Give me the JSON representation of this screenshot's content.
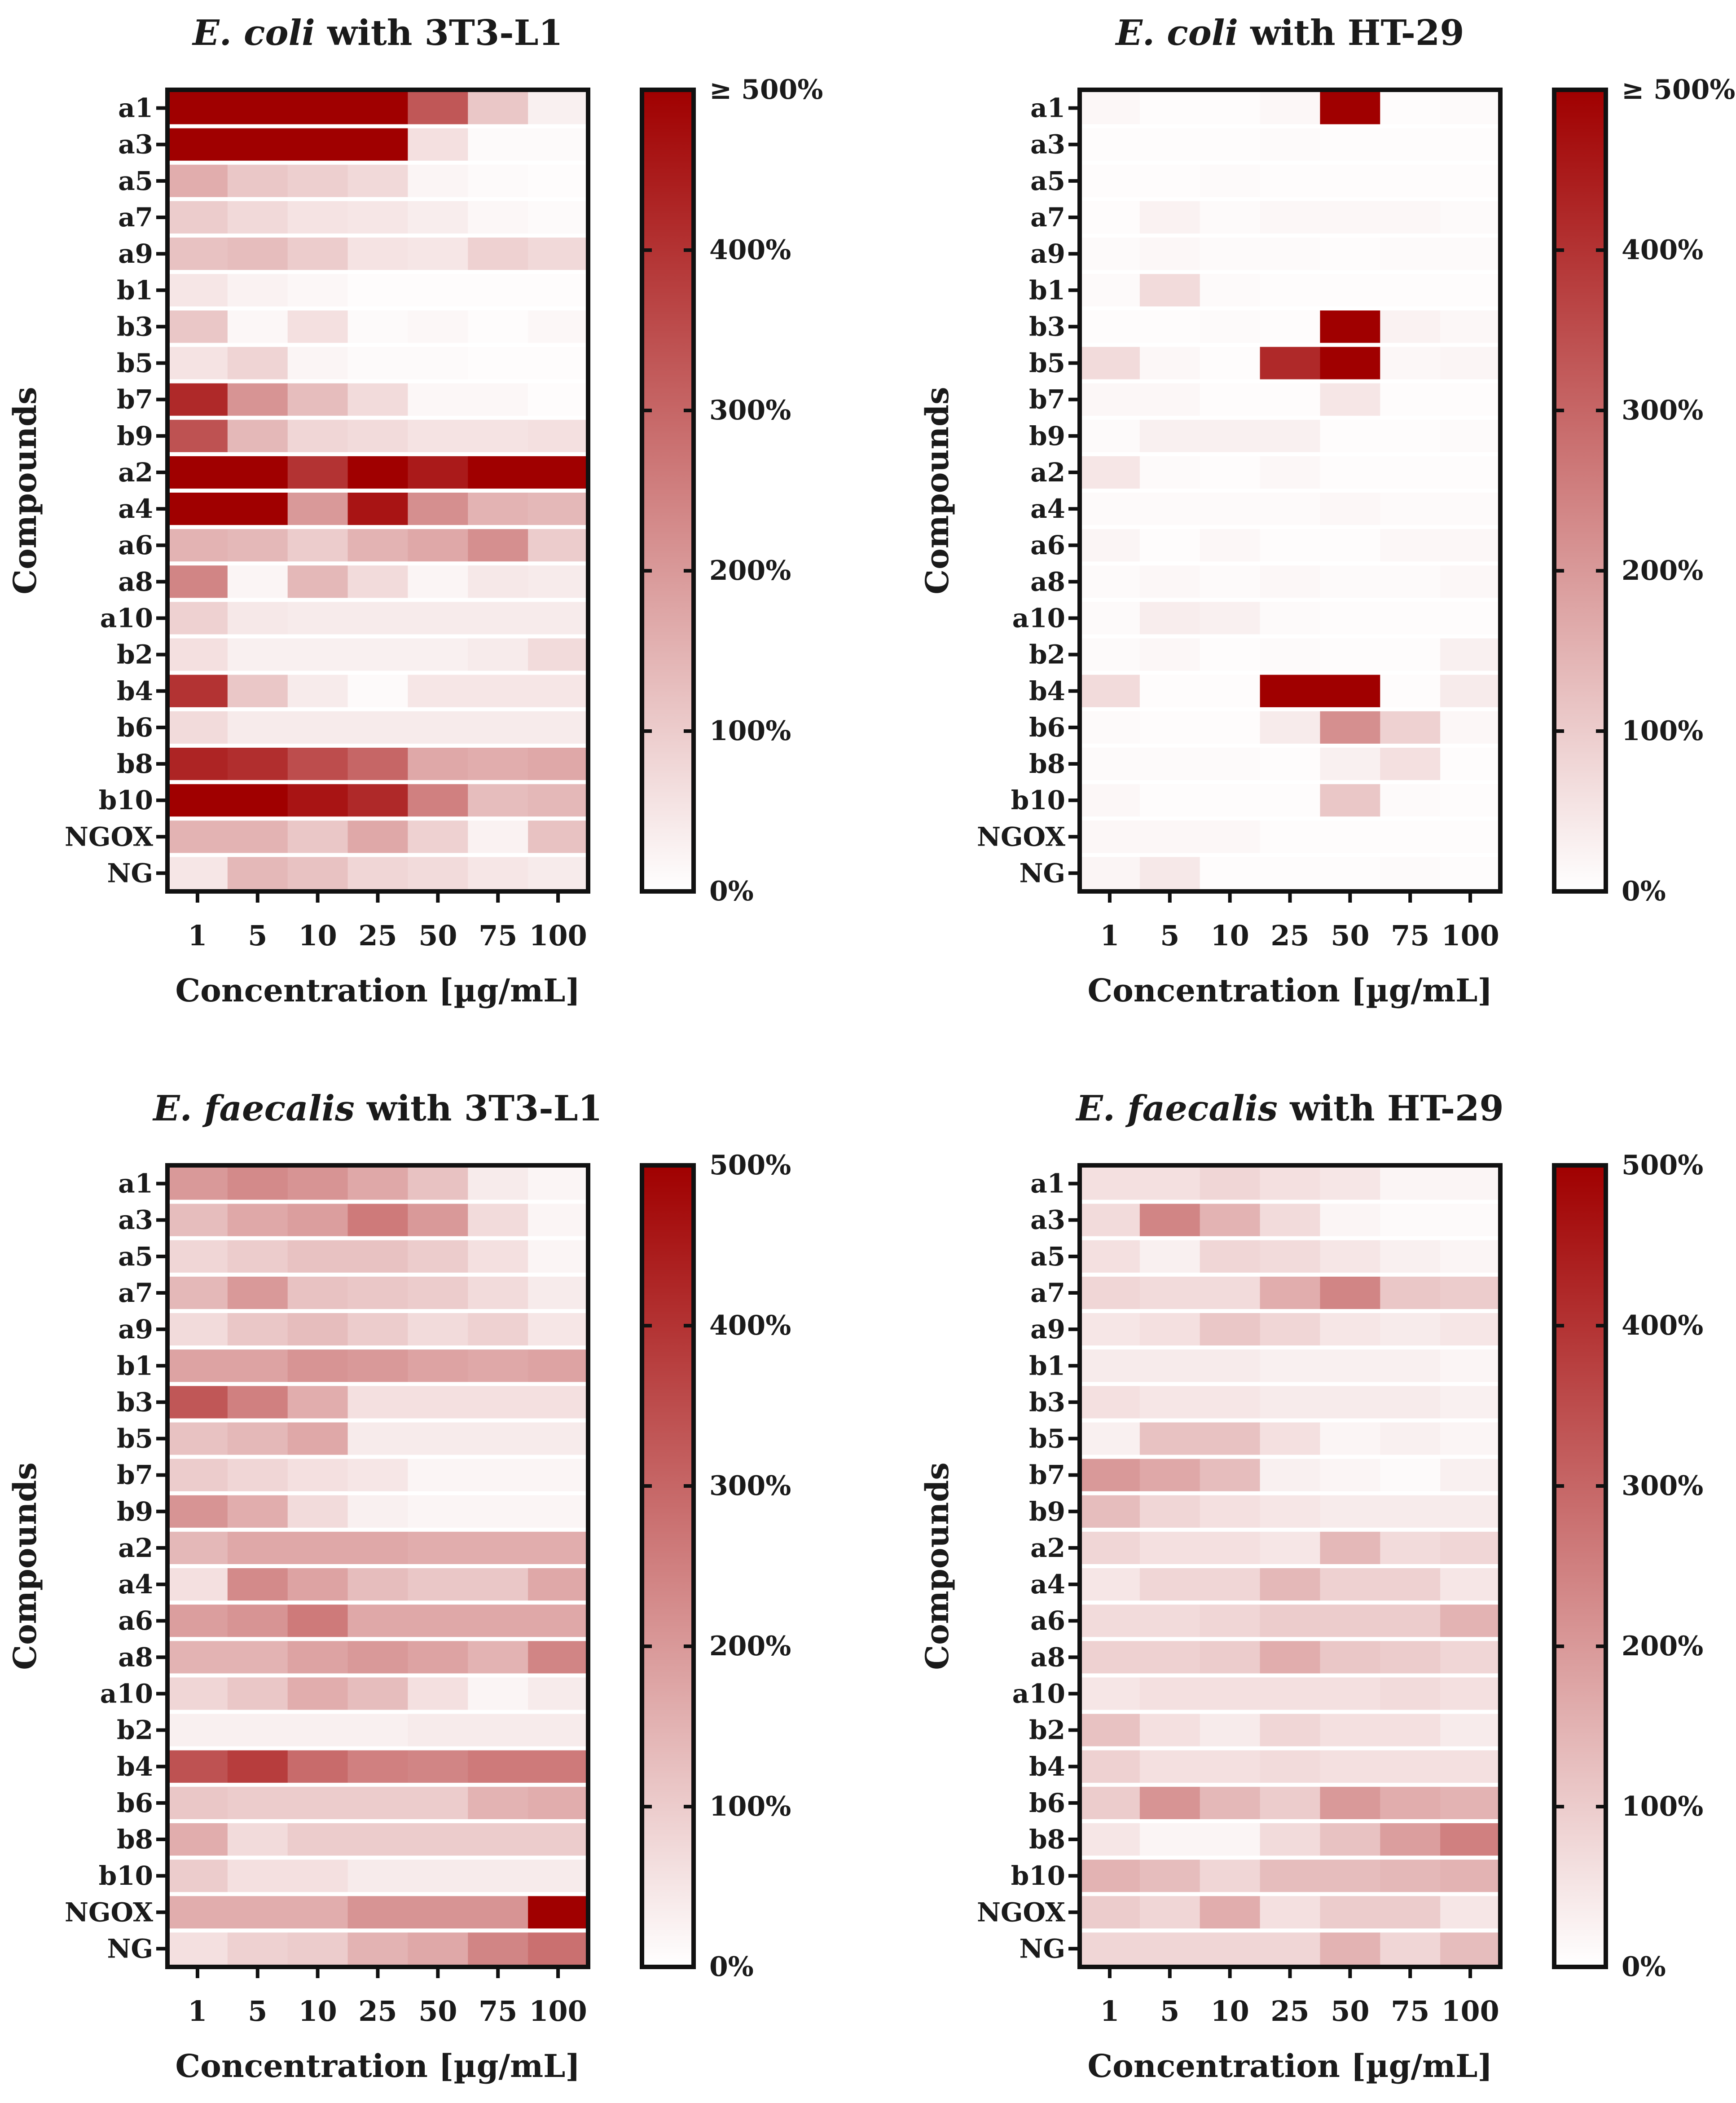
{
  "figure": "heatmap_grid",
  "chart_data": [
    {
      "type": "heatmap",
      "title_species": "E. coli",
      "title_rest": " with 3T3-L1",
      "xlabel": "Concentration [µg/mL]",
      "ylabel": "Compounds",
      "columns": [
        "1",
        "5",
        "10",
        "25",
        "50",
        "75",
        "100"
      ],
      "rows": [
        "a1",
        "a3",
        "a5",
        "a7",
        "a9",
        "b1",
        "b3",
        "b5",
        "b7",
        "b9",
        "a2",
        "a4",
        "a6",
        "a8",
        "a10",
        "b2",
        "b4",
        "b6",
        "b8",
        "b10",
        "NGOX",
        "NG"
      ],
      "colorbar": {
        "min": 0,
        "max": 500,
        "ticks": [
          "0%",
          "100%",
          "200%",
          "300%",
          "400%",
          "≥ 500%"
        ],
        "low_color": "#ffffff",
        "high_color": "#a00000"
      },
      "values": [
        [
          500,
          500,
          500,
          500,
          330,
          110,
          30
        ],
        [
          500,
          500,
          500,
          500,
          60,
          10,
          10
        ],
        [
          160,
          110,
          95,
          75,
          20,
          10,
          5
        ],
        [
          100,
          75,
          55,
          50,
          35,
          15,
          10
        ],
        [
          120,
          130,
          100,
          55,
          50,
          90,
          75
        ],
        [
          50,
          25,
          15,
          5,
          5,
          5,
          5
        ],
        [
          110,
          15,
          60,
          10,
          15,
          5,
          15
        ],
        [
          55,
          85,
          20,
          10,
          10,
          5,
          5
        ],
        [
          420,
          210,
          130,
          70,
          15,
          15,
          5
        ],
        [
          340,
          140,
          80,
          70,
          55,
          55,
          60
        ],
        [
          500,
          500,
          400,
          500,
          450,
          500,
          500
        ],
        [
          500,
          500,
          200,
          460,
          220,
          150,
          140
        ],
        [
          150,
          140,
          100,
          150,
          170,
          220,
          100
        ],
        [
          240,
          20,
          140,
          70,
          20,
          45,
          40
        ],
        [
          90,
          45,
          40,
          40,
          40,
          40,
          40
        ],
        [
          60,
          30,
          30,
          30,
          30,
          40,
          70
        ],
        [
          400,
          110,
          40,
          10,
          50,
          50,
          50
        ],
        [
          70,
          40,
          40,
          40,
          40,
          40,
          40
        ],
        [
          430,
          410,
          350,
          300,
          170,
          160,
          170
        ],
        [
          500,
          500,
          460,
          420,
          250,
          130,
          140
        ],
        [
          150,
          150,
          110,
          170,
          90,
          25,
          120
        ],
        [
          50,
          140,
          120,
          80,
          70,
          50,
          40
        ]
      ]
    },
    {
      "type": "heatmap",
      "title_species": "E. coli",
      "title_rest": " with HT-29",
      "xlabel": "Concentration [µg/mL]",
      "ylabel": "Compounds",
      "columns": [
        "1",
        "5",
        "10",
        "25",
        "50",
        "75",
        "100"
      ],
      "rows": [
        "a1",
        "a3",
        "a5",
        "a7",
        "a9",
        "b1",
        "b3",
        "b5",
        "b7",
        "b9",
        "a2",
        "a4",
        "a6",
        "a8",
        "a10",
        "b2",
        "b4",
        "b6",
        "b8",
        "b10",
        "NGOX",
        "NG"
      ],
      "colorbar": {
        "min": 0,
        "max": 500,
        "ticks": [
          "0%",
          "100%",
          "200%",
          "300%",
          "400%",
          "≥ 500%"
        ],
        "low_color": "#ffffff",
        "high_color": "#a00000"
      },
      "values": [
        [
          15,
          5,
          5,
          15,
          500,
          5,
          10
        ],
        [
          5,
          5,
          5,
          10,
          5,
          5,
          5
        ],
        [
          5,
          5,
          10,
          5,
          5,
          5,
          5
        ],
        [
          5,
          25,
          10,
          15,
          15,
          15,
          10
        ],
        [
          10,
          15,
          10,
          10,
          5,
          10,
          10
        ],
        [
          10,
          70,
          10,
          5,
          5,
          5,
          5
        ],
        [
          5,
          5,
          10,
          5,
          500,
          25,
          15
        ],
        [
          70,
          15,
          5,
          420,
          500,
          15,
          20
        ],
        [
          15,
          15,
          5,
          5,
          50,
          5,
          5
        ],
        [
          10,
          30,
          30,
          30,
          5,
          5,
          10
        ],
        [
          50,
          10,
          5,
          15,
          5,
          5,
          5
        ],
        [
          10,
          10,
          10,
          10,
          15,
          10,
          10
        ],
        [
          20,
          5,
          15,
          5,
          5,
          15,
          15
        ],
        [
          10,
          15,
          10,
          15,
          10,
          10,
          15
        ],
        [
          10,
          35,
          30,
          10,
          5,
          5,
          5
        ],
        [
          10,
          15,
          5,
          10,
          5,
          5,
          30
        ],
        [
          70,
          5,
          5,
          500,
          500,
          5,
          40
        ],
        [
          10,
          5,
          5,
          40,
          220,
          90,
          15
        ],
        [
          10,
          10,
          10,
          5,
          30,
          60,
          5
        ],
        [
          15,
          5,
          5,
          5,
          110,
          10,
          5
        ],
        [
          15,
          15,
          15,
          5,
          5,
          5,
          5
        ],
        [
          20,
          45,
          5,
          5,
          5,
          10,
          5
        ]
      ]
    },
    {
      "type": "heatmap",
      "title_species": "E. faecalis",
      "title_rest": " with 3T3-L1",
      "xlabel": "Concentration [µg/mL]",
      "ylabel": "Compounds",
      "columns": [
        "1",
        "5",
        "10",
        "25",
        "50",
        "75",
        "100"
      ],
      "rows": [
        "a1",
        "a3",
        "a5",
        "a7",
        "a9",
        "b1",
        "b3",
        "b5",
        "b7",
        "b9",
        "a2",
        "a4",
        "a6",
        "a8",
        "a10",
        "b2",
        "b4",
        "b6",
        "b8",
        "b10",
        "NGOX",
        "NG"
      ],
      "colorbar": {
        "min": 0,
        "max": 500,
        "ticks": [
          "0%",
          "100%",
          "200%",
          "300%",
          "400%",
          "500%"
        ],
        "low_color": "#ffffff",
        "high_color": "#a00000"
      },
      "values": [
        [
          200,
          230,
          210,
          170,
          120,
          40,
          20
        ],
        [
          130,
          170,
          190,
          260,
          200,
          70,
          20
        ],
        [
          80,
          100,
          120,
          120,
          100,
          60,
          20
        ],
        [
          140,
          200,
          120,
          110,
          100,
          70,
          40
        ],
        [
          70,
          110,
          130,
          100,
          70,
          90,
          50
        ],
        [
          180,
          180,
          210,
          200,
          180,
          170,
          180
        ],
        [
          330,
          250,
          160,
          60,
          60,
          60,
          60
        ],
        [
          120,
          140,
          170,
          40,
          40,
          40,
          40
        ],
        [
          100,
          80,
          60,
          50,
          20,
          20,
          20
        ],
        [
          210,
          160,
          70,
          30,
          20,
          20,
          20
        ],
        [
          140,
          170,
          170,
          170,
          160,
          160,
          160
        ],
        [
          60,
          230,
          180,
          130,
          110,
          110,
          170
        ],
        [
          190,
          210,
          260,
          170,
          170,
          170,
          170
        ],
        [
          150,
          150,
          180,
          200,
          180,
          150,
          240
        ],
        [
          80,
          110,
          160,
          130,
          60,
          20,
          40
        ],
        [
          30,
          30,
          30,
          30,
          40,
          40,
          40
        ],
        [
          340,
          380,
          290,
          250,
          240,
          260,
          260
        ],
        [
          110,
          100,
          100,
          100,
          100,
          150,
          160
        ],
        [
          160,
          70,
          100,
          100,
          100,
          100,
          100
        ],
        [
          100,
          60,
          60,
          40,
          40,
          40,
          40
        ],
        [
          160,
          160,
          160,
          210,
          210,
          210,
          500
        ],
        [
          60,
          90,
          100,
          150,
          170,
          240,
          280
        ]
      ]
    },
    {
      "type": "heatmap",
      "title_species": "E. faecalis",
      "title_rest": " with HT-29",
      "xlabel": "Concentration [µg/mL]",
      "ylabel": "Compounds",
      "columns": [
        "1",
        "5",
        "10",
        "25",
        "50",
        "75",
        "100"
      ],
      "rows": [
        "a1",
        "a3",
        "a5",
        "a7",
        "a9",
        "b1",
        "b3",
        "b5",
        "b7",
        "b9",
        "a2",
        "a4",
        "a6",
        "a8",
        "a10",
        "b2",
        "b4",
        "b6",
        "b8",
        "b10",
        "NGOX",
        "NG"
      ],
      "colorbar": {
        "min": 0,
        "max": 500,
        "ticks": [
          "0%",
          "100%",
          "200%",
          "300%",
          "400%",
          "500%"
        ],
        "low_color": "#ffffff",
        "high_color": "#a00000"
      },
      "values": [
        [
          60,
          60,
          80,
          60,
          50,
          20,
          20
        ],
        [
          70,
          240,
          150,
          70,
          20,
          10,
          10
        ],
        [
          60,
          30,
          80,
          70,
          50,
          30,
          20
        ],
        [
          80,
          70,
          70,
          160,
          240,
          110,
          100
        ],
        [
          50,
          60,
          110,
          80,
          50,
          40,
          50
        ],
        [
          40,
          40,
          40,
          30,
          30,
          30,
          20
        ],
        [
          60,
          50,
          50,
          40,
          40,
          40,
          30
        ],
        [
          30,
          120,
          120,
          60,
          20,
          30,
          20
        ],
        [
          200,
          170,
          130,
          30,
          20,
          10,
          30
        ],
        [
          130,
          80,
          60,
          50,
          40,
          40,
          40
        ],
        [
          80,
          60,
          60,
          50,
          140,
          70,
          80
        ],
        [
          50,
          80,
          80,
          140,
          90,
          90,
          50
        ],
        [
          70,
          70,
          80,
          100,
          100,
          100,
          150
        ],
        [
          90,
          90,
          100,
          160,
          110,
          100,
          80
        ],
        [
          50,
          60,
          60,
          60,
          60,
          70,
          60
        ],
        [
          120,
          60,
          40,
          80,
          60,
          60,
          40
        ],
        [
          90,
          60,
          60,
          70,
          60,
          60,
          60
        ],
        [
          100,
          210,
          140,
          100,
          200,
          160,
          150
        ],
        [
          50,
          20,
          20,
          70,
          120,
          190,
          250
        ],
        [
          150,
          130,
          80,
          130,
          130,
          140,
          150
        ],
        [
          100,
          80,
          160,
          60,
          100,
          100,
          50
        ],
        [
          80,
          80,
          80,
          80,
          150,
          80,
          130
        ]
      ]
    }
  ]
}
